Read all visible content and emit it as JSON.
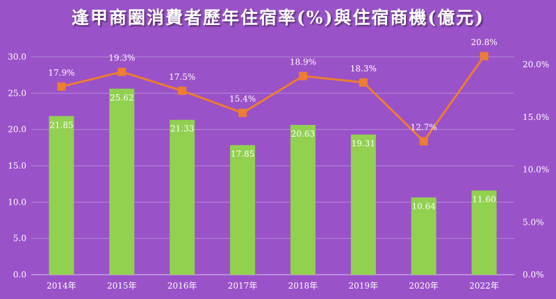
{
  "chart_data": {
    "type": "bar",
    "title": "逢甲商圈消費者歷年住宿率(%)與住宿商機(億元)",
    "categories": [
      "2014年",
      "2015年",
      "2016年",
      "2017年",
      "2018年",
      "2019年",
      "2020年",
      "2022年"
    ],
    "series": [
      {
        "type": "bar",
        "axis": "left",
        "values": [
          21.85,
          25.62,
          21.33,
          17.85,
          20.63,
          19.31,
          10.64,
          11.6
        ],
        "labels": [
          "21.85",
          "25.62",
          "21.33",
          "17.85",
          "20.63",
          "19.31",
          "10.64",
          "11.60"
        ],
        "color": "#92d050"
      },
      {
        "type": "line",
        "axis": "right",
        "values": [
          17.9,
          19.3,
          17.5,
          15.4,
          18.9,
          18.3,
          12.7,
          20.8
        ],
        "labels": [
          "17.9%",
          "19.3%",
          "17.5%",
          "15.4%",
          "18.9%",
          "18.3%",
          "12.7%",
          "20.8%"
        ],
        "color": "#ed7d31"
      }
    ],
    "y_left": {
      "range": [
        0,
        30
      ],
      "ticks": [
        "0.0",
        "5.0",
        "10.0",
        "15.0",
        "20.0",
        "25.0",
        "30.0"
      ]
    },
    "y_right": {
      "range": [
        0,
        20
      ],
      "ticks": [
        "0.0%",
        "5.0%",
        "10.0%",
        "15.0%",
        "20.0%"
      ]
    },
    "grid": true,
    "background": "#9a52c9"
  }
}
